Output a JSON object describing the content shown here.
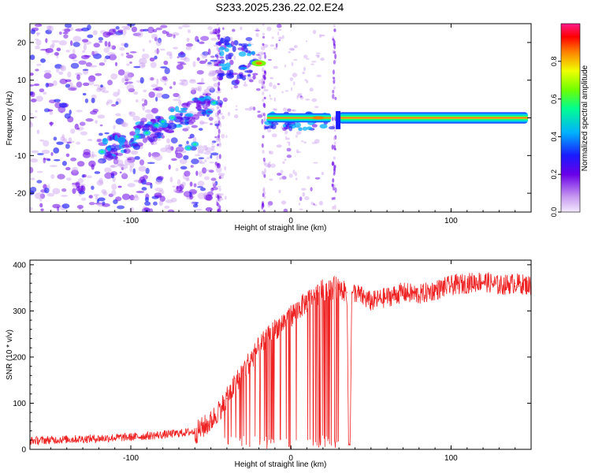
{
  "title": "S233.2025.236.22.02.E24",
  "chart_data": [
    {
      "type": "heatmap",
      "title": "S233.2025.236.22.02.E24",
      "xlabel": "Height of straight line (km)",
      "ylabel": "Frequency (Hz)",
      "xlim": [
        -163,
        150
      ],
      "ylim": [
        -25,
        25
      ],
      "xticks": [
        -100,
        0,
        100
      ],
      "xtick_labels": [
        "-100",
        "0",
        "100"
      ],
      "yticks": [
        -20,
        -10,
        0,
        10,
        20
      ],
      "ytick_labels": [
        "-20",
        "-10",
        "0",
        "10",
        "20"
      ],
      "colorbar": {
        "label": "Normalized spectral amplitude",
        "range": [
          0,
          1
        ],
        "ticks": [
          0.0,
          0.2,
          0.4,
          0.6,
          0.8
        ],
        "tick_labels": [
          "0.0",
          "0.2",
          "0.4",
          "0.6",
          "0.8"
        ],
        "colormap": [
          "#ffffff",
          "#d9c2f0",
          "#8a2be2",
          "#4b00d8",
          "#0040ff",
          "#00c8ff",
          "#00ff80",
          "#80ff00",
          "#ffff00",
          "#ff8000",
          "#ff0000",
          "#ff1493"
        ]
      },
      "features": [
        {
          "name": "tone",
          "x_start": 30,
          "x_end": 148,
          "freq": 0,
          "amplitude": 0.97
        },
        {
          "name": "tone-segment",
          "x_start": -15,
          "x_end": 25,
          "freq": 0,
          "amplitude": 0.8
        },
        {
          "name": "upper-blob",
          "x": -20,
          "freq": 14.5,
          "amplitude": 0.85
        },
        {
          "name": "rising-streak",
          "x_start": -118,
          "x_end": -50,
          "freq_start": -9,
          "freq_end": 4,
          "amplitude": 0.45
        }
      ]
    },
    {
      "type": "line",
      "xlabel": "Height of straight line (km)",
      "ylabel": "SNR (10 * v/v)",
      "xlim": [
        -163,
        150
      ],
      "ylim": [
        0,
        410
      ],
      "xticks": [
        -100,
        0,
        100
      ],
      "xtick_labels": [
        "-100",
        "0",
        "100"
      ],
      "yticks": [
        0,
        100,
        200,
        300,
        400
      ],
      "ytick_labels": [
        "0",
        "100",
        "200",
        "300",
        "400"
      ],
      "line_color": "#ee2222",
      "series": [
        {
          "name": "SNR",
          "x": [
            -163,
            -140,
            -120,
            -100,
            -80,
            -60,
            -50,
            -40,
            -30,
            -20,
            -10,
            0,
            10,
            20,
            28,
            35,
            36,
            37,
            38,
            40,
            50,
            60,
            70,
            80,
            90,
            100,
            110,
            120,
            130,
            140,
            150
          ],
          "values": [
            15,
            18,
            20,
            23,
            28,
            35,
            60,
            110,
            170,
            220,
            260,
            290,
            320,
            345,
            350,
            340,
            10,
            10,
            340,
            340,
            320,
            330,
            340,
            335,
            345,
            355,
            360,
            365,
            355,
            360,
            355
          ]
        }
      ]
    }
  ]
}
